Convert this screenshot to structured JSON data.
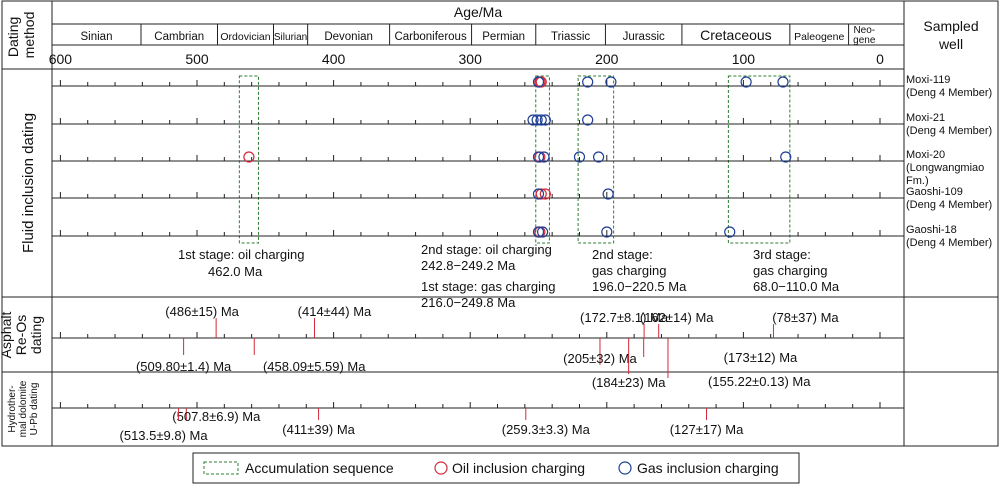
{
  "header": {
    "dating_method_line1": "Dating",
    "dating_method_line2": "method",
    "age_title": "Age/Ma",
    "sampled_line1": "Sampled",
    "sampled_line2": "well"
  },
  "periods": [
    {
      "name": "Sinian",
      "start": 635,
      "end": 541
    },
    {
      "name": "Cambrian",
      "start": 541,
      "end": 485
    },
    {
      "name": "Ordovician",
      "start": 485,
      "end": 444
    },
    {
      "name": "Silurian",
      "start": 444,
      "end": 419
    },
    {
      "name": "Devonian",
      "start": 419,
      "end": 359
    },
    {
      "name": "Carboniferous",
      "start": 359,
      "end": 299
    },
    {
      "name": "Permian",
      "start": 299,
      "end": 252
    },
    {
      "name": "Triassic",
      "start": 252,
      "end": 201
    },
    {
      "name": "Jurassic",
      "start": 201,
      "end": 145
    },
    {
      "name": "Cretaceous",
      "start": 145,
      "end": 66
    },
    {
      "name": "Paleogene",
      "start": 66,
      "end": 23
    },
    {
      "name": "Neo-gene",
      "start": 23,
      "end": 0
    }
  ],
  "age_ticks": [
    "600",
    "500",
    "400",
    "300",
    "200",
    "100",
    "0"
  ],
  "sections": {
    "fluid": "Fluid inclusion dating",
    "asphalt": "Asphalt Re-Os dating",
    "dolomite": "Hydrother-mal dolomite U-Pb dating"
  },
  "wells": [
    {
      "name": "Moxi-119",
      "unit": "(Deng 4 Member)",
      "oil": [
        249,
        248
      ],
      "gas": [
        250,
        214,
        197,
        98,
        71
      ]
    },
    {
      "name": "Moxi-21",
      "unit": "(Deng 4 Member)",
      "oil": [],
      "gas": [
        254,
        251,
        248,
        245,
        214
      ]
    },
    {
      "name": "Moxi-20",
      "unit": "(Longwangmiao Fm.)",
      "oil": [
        462,
        249
      ],
      "gas": [
        250,
        246,
        220,
        206,
        69
      ]
    },
    {
      "name": "Gaoshi-109",
      "unit": "(Deng 4 Member)",
      "oil": [
        248,
        245
      ],
      "gas": [
        250,
        199
      ]
    },
    {
      "name": "Gaoshi-18",
      "unit": "(Deng 4 Member)",
      "oil": [
        249
      ],
      "gas": [
        250,
        247,
        200,
        110
      ]
    }
  ],
  "stage_labels": [
    {
      "line1": "1st stage: oil charging",
      "line2": "462.0 Ma"
    },
    {
      "line1": "2nd stage: oil charging",
      "line2": "242.8−249.2 Ma",
      "line3": "1st stage: gas charging",
      "line4": "216.0−249.8 Ma"
    },
    {
      "line1": "2nd stage:",
      "line2": "gas charging",
      "line3": "196.0−220.5 Ma"
    },
    {
      "line1": "3rd stage:",
      "line2": "gas charging",
      "line3": "68.0−110.0 Ma"
    }
  ],
  "accumulation_boxes": [
    {
      "from": 469,
      "to": 455
    },
    {
      "from": 252,
      "to": 242
    },
    {
      "from": 221,
      "to": 195
    },
    {
      "from": 111,
      "to": 66
    }
  ],
  "reos_dates": [
    {
      "label": "(486±15) Ma",
      "age": 486
    },
    {
      "label": "(414±44) Ma",
      "age": 414
    },
    {
      "label": "(172.7±8.1) Ma",
      "age": 172.7
    },
    {
      "label": "(162±14) Ma",
      "age": 162
    },
    {
      "label": "(78±37) Ma",
      "age": 78
    },
    {
      "label": "(509.80±1.4) Ma",
      "age": 509.8
    },
    {
      "label": "(458.09±5.59) Ma",
      "age": 458.09
    },
    {
      "label": "(205±32) Ma",
      "age": 205
    },
    {
      "label": "(173±12) Ma",
      "age": 173
    },
    {
      "label": "(184±23) Ma",
      "age": 184
    },
    {
      "label": "(155.22±0.13) Ma",
      "age": 155.22
    }
  ],
  "upb_dates": [
    {
      "label": "(507.8±6.9) Ma",
      "age": 507.8
    },
    {
      "label": "(513.5±9.8) Ma",
      "age": 513.5
    },
    {
      "label": "(411±39) Ma",
      "age": 411
    },
    {
      "label": "(259.3±3.3) Ma",
      "age": 259.3
    },
    {
      "label": "(127±17) Ma",
      "age": 127
    }
  ],
  "legend": {
    "accumulation": "Accumulation sequence",
    "oil": "Oil inclusion charging",
    "gas": "Gas inclusion charging"
  },
  "colors": {
    "oil": "#d42a3a",
    "gas": "#1f3f96",
    "box": "#2e7d32",
    "leader": "#d42a3a"
  }
}
